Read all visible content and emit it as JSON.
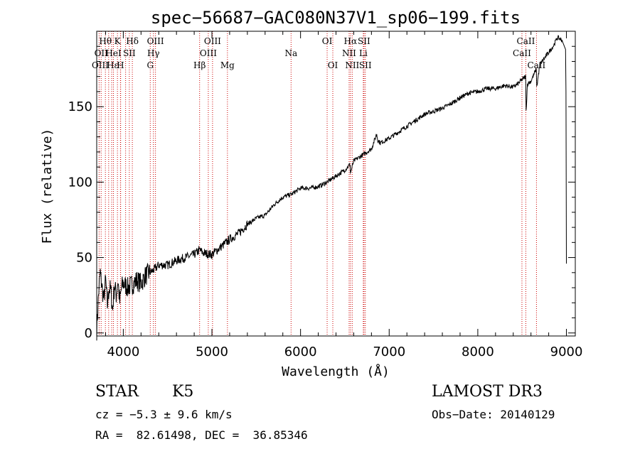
{
  "chart_data": {
    "type": "line",
    "title": "spec−56687−GAC080N37V1_sp06−199.fits",
    "xlabel": "Wavelength (Å)",
    "ylabel": "Flux (relative)",
    "xlim": [
      3700,
      9100
    ],
    "ylim": [
      -2,
      200
    ],
    "x_ticks": [
      4000,
      5000,
      6000,
      7000,
      8000,
      9000
    ],
    "y_ticks": [
      0,
      50,
      100,
      150
    ],
    "grid": false,
    "series": [
      {
        "name": "spectrum",
        "color": "#000000",
        "x": [
          3700,
          3720,
          3740,
          3760,
          3780,
          3800,
          3820,
          3840,
          3860,
          3880,
          3900,
          3920,
          3940,
          3960,
          3980,
          4000,
          4050,
          4100,
          4150,
          4200,
          4250,
          4300,
          4350,
          4400,
          4500,
          4600,
          4700,
          4800,
          4860,
          4900,
          5000,
          5100,
          5200,
          5300,
          5400,
          5500,
          5600,
          5700,
          5800,
          5900,
          6000,
          6100,
          6200,
          6300,
          6400,
          6500,
          6560,
          6563,
          6600,
          6700,
          6800,
          6860,
          6870,
          6900,
          7000,
          7100,
          7200,
          7300,
          7400,
          7500,
          7600,
          7700,
          7800,
          7900,
          8000,
          8100,
          8200,
          8300,
          8400,
          8450,
          8500,
          8540,
          8545,
          8560,
          8600,
          8660,
          8665,
          8700,
          8750,
          8800,
          8850,
          8900,
          8950,
          8990,
          8995,
          9000
        ],
        "y": [
          2,
          25,
          40,
          30,
          22,
          35,
          18,
          30,
          28,
          15,
          32,
          25,
          35,
          20,
          30,
          33,
          30,
          32,
          35,
          33,
          38,
          40,
          42,
          45,
          45,
          48,
          50,
          52,
          55,
          53,
          52,
          57,
          62,
          66,
          72,
          76,
          78,
          85,
          90,
          92,
          96,
          96,
          97,
          100,
          104,
          108,
          112,
          106,
          114,
          118,
          122,
          132,
          128,
          126,
          129,
          133,
          137,
          141,
          145,
          147,
          149,
          152,
          156,
          159,
          160,
          162,
          162,
          164,
          163,
          165,
          168,
          170,
          147,
          165,
          167,
          175,
          163,
          178,
          182,
          186,
          190,
          196,
          194,
          188,
          160,
          46
        ]
      }
    ],
    "line_markers": [
      {
        "wavelength": 3727,
        "label": ""
      },
      {
        "wavelength": 3750,
        "label": ""
      },
      {
        "wavelength": 3798,
        "label": "Hθ"
      },
      {
        "wavelength": 3835,
        "label": "OII"
      },
      {
        "wavelength": 3869,
        "label": "OIII"
      },
      {
        "wavelength": 3889,
        "label": "He I"
      },
      {
        "wavelength": 3934,
        "label": "K"
      },
      {
        "wavelength": 3968,
        "label": "H"
      },
      {
        "wavelength": 3970,
        "label": "Hε"
      },
      {
        "wavelength": 4026,
        "label": "HeI"
      },
      {
        "wavelength": 4068,
        "label": "SII"
      },
      {
        "wavelength": 4102,
        "label": "Hδ"
      },
      {
        "wavelength": 4304,
        "label": "G"
      },
      {
        "wavelength": 4340,
        "label": "Hγ"
      },
      {
        "wavelength": 4363,
        "label": "OIII"
      },
      {
        "wavelength": 4861,
        "label": "Hβ"
      },
      {
        "wavelength": 4959,
        "label": "OIII"
      },
      {
        "wavelength": 5007,
        "label": "OIII"
      },
      {
        "wavelength": 5175,
        "label": "Mg"
      },
      {
        "wavelength": 5893,
        "label": "Na"
      },
      {
        "wavelength": 6300,
        "label": "OI"
      },
      {
        "wavelength": 6364,
        "label": "OI"
      },
      {
        "wavelength": 6548,
        "label": "NII"
      },
      {
        "wavelength": 6563,
        "label": "Hα"
      },
      {
        "wavelength": 6583,
        "label": "NII"
      },
      {
        "wavelength": 6708,
        "label": "Li"
      },
      {
        "wavelength": 6716,
        "label": "SII"
      },
      {
        "wavelength": 6731,
        "label": "SII"
      },
      {
        "wavelength": 8498,
        "label": "CaII"
      },
      {
        "wavelength": 8542,
        "label": "CaII"
      },
      {
        "wavelength": 8662,
        "label": "CaII"
      }
    ],
    "marker_label_rows": [
      [
        {
          "text": "Hθ",
          "wavelength": 3798
        },
        {
          "text": "K",
          "wavelength": 3934
        },
        {
          "text": "Hδ",
          "wavelength": 4102
        },
        {
          "text": "OIII",
          "wavelength": 4363
        },
        {
          "text": "OIII",
          "wavelength": 5007
        },
        {
          "text": "OI",
          "wavelength": 6300
        },
        {
          "text": "Hα",
          "wavelength": 6563
        },
        {
          "text": "SII",
          "wavelength": 6716
        },
        {
          "text": "CaII",
          "wavelength": 8542
        }
      ],
      [
        {
          "text": "OII",
          "wavelength": 3750
        },
        {
          "text": "HeI",
          "wavelength": 3889
        },
        {
          "text": "SII",
          "wavelength": 4068
        },
        {
          "text": "Hγ",
          "wavelength": 4340
        },
        {
          "text": "OIII",
          "wavelength": 4959
        },
        {
          "text": "Na",
          "wavelength": 5893
        },
        {
          "text": "NII",
          "wavelength": 6548
        },
        {
          "text": "Li",
          "wavelength": 6708
        },
        {
          "text": "CaII",
          "wavelength": 8498
        }
      ],
      [
        {
          "text": "OIII",
          "wavelength": 3740
        },
        {
          "text": "Hε",
          "wavelength": 3880
        },
        {
          "text": "H",
          "wavelength": 3968
        },
        {
          "text": "G",
          "wavelength": 4304
        },
        {
          "text": "Hβ",
          "wavelength": 4861
        },
        {
          "text": "Mg",
          "wavelength": 5175
        },
        {
          "text": "OI",
          "wavelength": 6364
        },
        {
          "text": "NII",
          "wavelength": 6583
        },
        {
          "text": "SII",
          "wavelength": 6731
        },
        {
          "text": "CaII",
          "wavelength": 8662
        }
      ]
    ],
    "colors": {
      "axes": "#000000",
      "line": "#000000",
      "marker": "#cc0000"
    }
  },
  "info": {
    "class": "STAR",
    "subclass": "K5",
    "survey": "LAMOST DR3",
    "cz": "cz = −5.3 ± 9.6 km/s",
    "obs_date": "Obs−Date: 20140129",
    "coords": "RA =  82.61498, DEC =  36.85346"
  }
}
